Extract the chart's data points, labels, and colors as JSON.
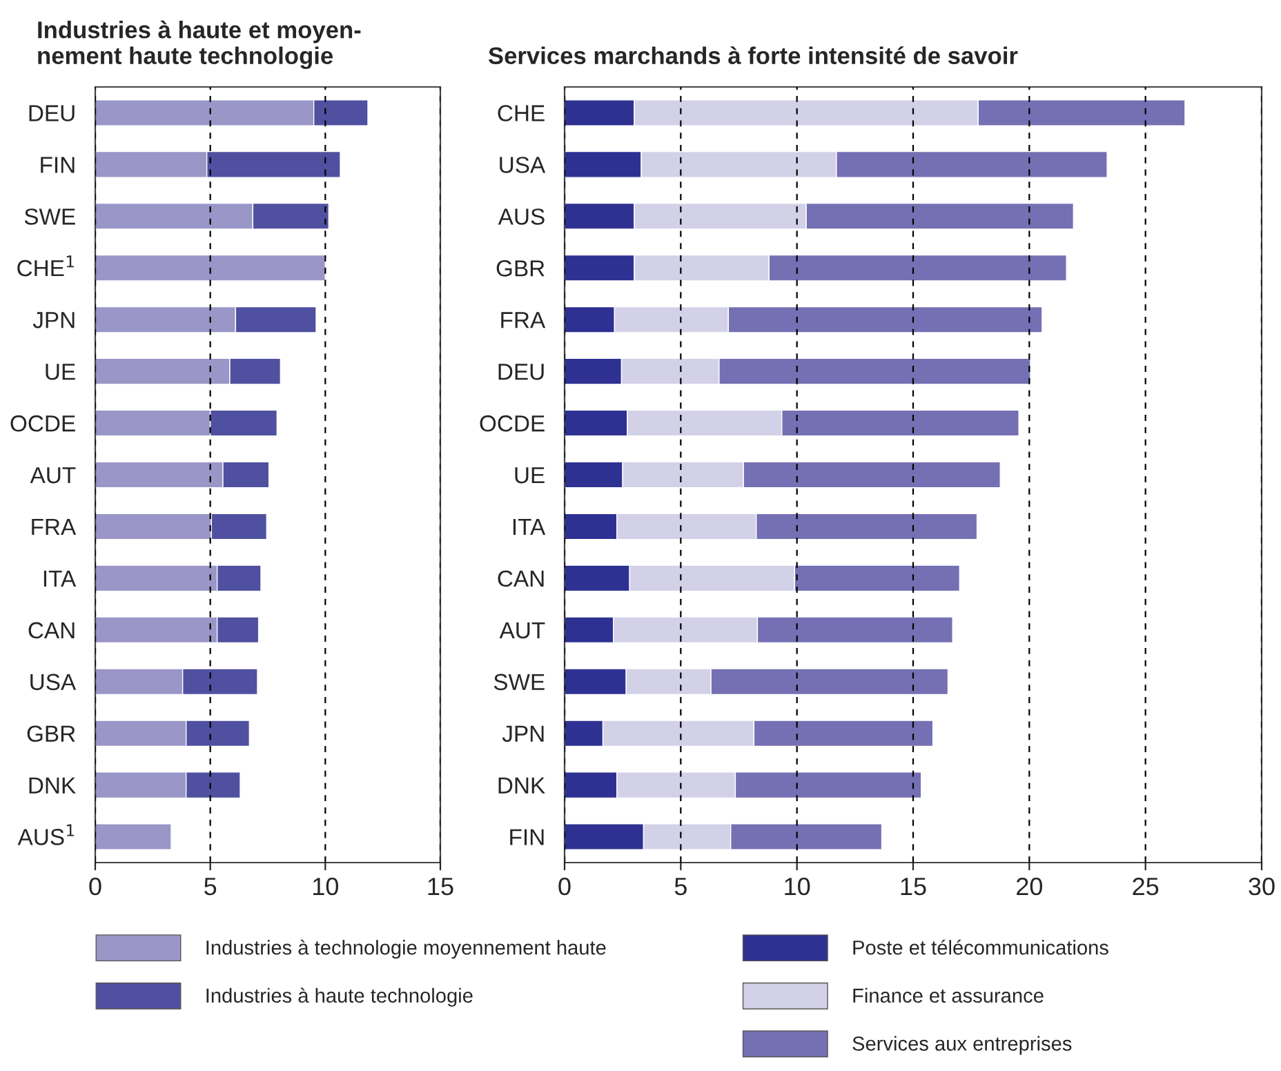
{
  "chart_data": [
    {
      "type": "bar",
      "title": "Industries à haute et moyen-\nnement haute technologie",
      "orientation": "horizontal",
      "stacked": true,
      "categories": [
        "DEU",
        "FIN",
        "SWE",
        "CHE$^{1}$",
        "JPN",
        "UE",
        "OCDE",
        "AUT",
        "FRA",
        "ITA",
        "CAN",
        "USA",
        "GBR",
        "DNK",
        "AUS$^{1}$"
      ],
      "series": [
        {
          "name": "Industries à technologie moyennement haute",
          "color": "#9a96c8",
          "values": [
            9.5,
            4.85,
            6.85,
            10.0,
            6.1,
            5.85,
            5.0,
            5.55,
            5.05,
            5.3,
            5.3,
            3.8,
            3.95,
            3.95,
            3.3
          ]
        },
        {
          "name": "Industries à haute technologie",
          "color": "#5050a0",
          "values": [
            2.35,
            5.8,
            3.3,
            0,
            3.5,
            2.2,
            2.9,
            2.0,
            2.4,
            1.9,
            1.8,
            3.25,
            2.75,
            2.35,
            0
          ]
        }
      ],
      "xlim": [
        0,
        15
      ],
      "xticks": [
        0,
        5,
        10,
        15
      ],
      "grid": "x",
      "legend": "bottom"
    },
    {
      "type": "bar",
      "title": "Services marchands à forte intensité de savoir",
      "orientation": "horizontal",
      "stacked": true,
      "categories": [
        "CHE",
        "USA",
        "AUS",
        "GBR",
        "FRA",
        "DEU",
        "OCDE",
        "UE",
        "ITA",
        "CAN",
        "AUT",
        "SWE",
        "JPN",
        "DNK",
        "FIN"
      ],
      "series": [
        {
          "name": "Poste et télécommunications",
          "color": "#2e3192",
          "values": [
            3.0,
            3.3,
            3.0,
            3.0,
            2.15,
            2.45,
            2.7,
            2.5,
            2.25,
            2.8,
            2.1,
            2.65,
            1.65,
            2.25,
            3.4
          ]
        },
        {
          "name": "Finance et assurance",
          "color": "#d3d1e8",
          "values": [
            14.8,
            8.4,
            7.4,
            5.8,
            4.9,
            4.2,
            6.65,
            5.2,
            6.0,
            7.1,
            6.2,
            3.65,
            6.5,
            5.1,
            3.75
          ]
        },
        {
          "name": "Services aux entreprises",
          "color": "#7570b3",
          "values": [
            8.9,
            11.65,
            11.5,
            12.8,
            13.5,
            13.4,
            10.2,
            11.05,
            9.5,
            7.1,
            8.4,
            10.2,
            7.7,
            8.0,
            6.5
          ]
        }
      ],
      "xlim": [
        0,
        30
      ],
      "xticks": [
        0,
        5,
        10,
        15,
        20,
        25,
        30
      ],
      "grid": "x",
      "legend": "bottom"
    }
  ]
}
